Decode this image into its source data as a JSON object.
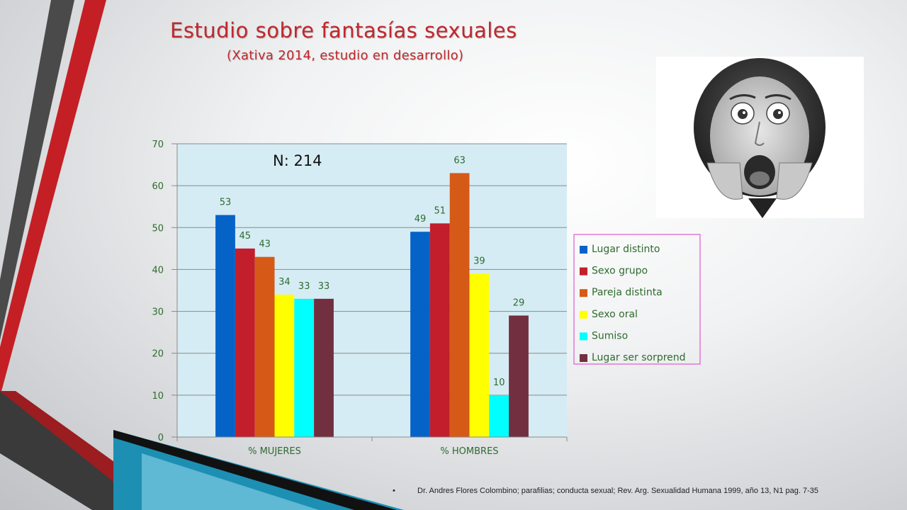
{
  "slide": {
    "title": "Estudio sobre fantasías sexuales",
    "subtitle": "(Xativa 2014, estudio en desarrollo)",
    "photo_icon": "surprised-woman-photo",
    "footnote_bullet": "•",
    "footnote": "Dr. Andres Flores Colombino; parafilias; conducta sexual; Rev. Arg. Sexualidad Humana 1999, año 13, N1 pag. 7-35"
  },
  "chart_data": {
    "type": "bar",
    "annotation": "N: 214",
    "categories": [
      "% MUJERES",
      "% HOMBRES"
    ],
    "series": [
      {
        "name": "Lugar distinto",
        "color": "#0563c8",
        "values": [
          53,
          49
        ]
      },
      {
        "name": "Sexo grupo",
        "color": "#c21e2b",
        "values": [
          45,
          51
        ]
      },
      {
        "name": "Pareja distinta",
        "color": "#d65a17",
        "values": [
          43,
          63
        ]
      },
      {
        "name": "Sexo oral",
        "color": "#ffff00",
        "values": [
          34,
          39
        ]
      },
      {
        "name": "Sumiso",
        "color": "#00ffff",
        "values": [
          33,
          10
        ]
      },
      {
        "name": "Lugar ser sorprend",
        "color": "#722f3f",
        "values": [
          33,
          29
        ]
      }
    ],
    "ylim": [
      0,
      70
    ],
    "yticks": [
      0,
      10,
      20,
      30,
      40,
      50,
      60,
      70
    ],
    "grid": true,
    "legend": "right",
    "plot_background": "#d6ecf4",
    "label_color": "#2f6b2f"
  }
}
